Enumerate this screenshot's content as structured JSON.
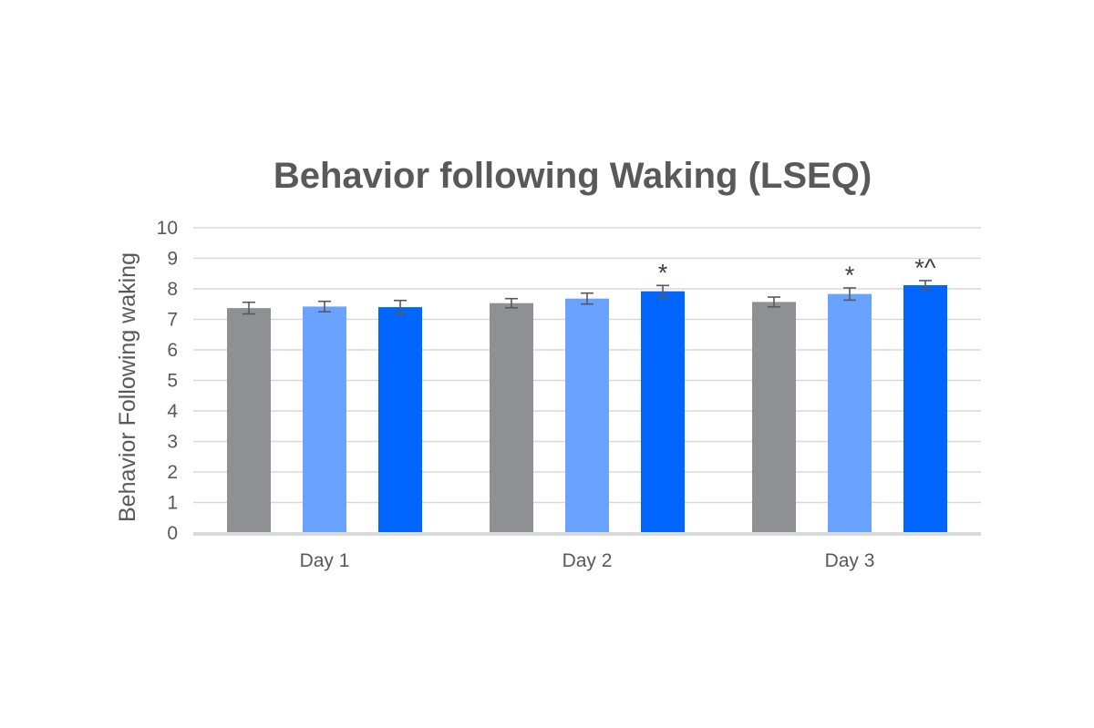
{
  "chart_data": {
    "type": "bar",
    "title": "Behavior following Waking (LSEQ)",
    "xlabel": "",
    "ylabel": "Behavior Following waking",
    "ylim": [
      0,
      10
    ],
    "yticks": [
      "0",
      "1",
      "2",
      "3",
      "4",
      "5",
      "6",
      "7",
      "8",
      "9",
      "10"
    ],
    "categories": [
      "Day 1",
      "Day 2",
      "Day 3"
    ],
    "grid": true,
    "legend": "none",
    "series": [
      {
        "color": "#8f9094",
        "values": [
          7.37,
          7.53,
          7.57
        ],
        "errors": [
          0.19,
          0.15,
          0.16
        ]
      },
      {
        "color": "#69a3ff",
        "values": [
          7.42,
          7.68,
          7.83
        ],
        "errors": [
          0.17,
          0.18,
          0.2
        ]
      },
      {
        "color": "#0066ff",
        "values": [
          7.4,
          7.92,
          8.12
        ],
        "errors": [
          0.22,
          0.19,
          0.15
        ]
      }
    ],
    "annotations": [
      {
        "category": 1,
        "series": 2,
        "text": "*"
      },
      {
        "category": 2,
        "series": 1,
        "text": "*"
      },
      {
        "category": 2,
        "series": 2,
        "text": "*^"
      }
    ]
  }
}
